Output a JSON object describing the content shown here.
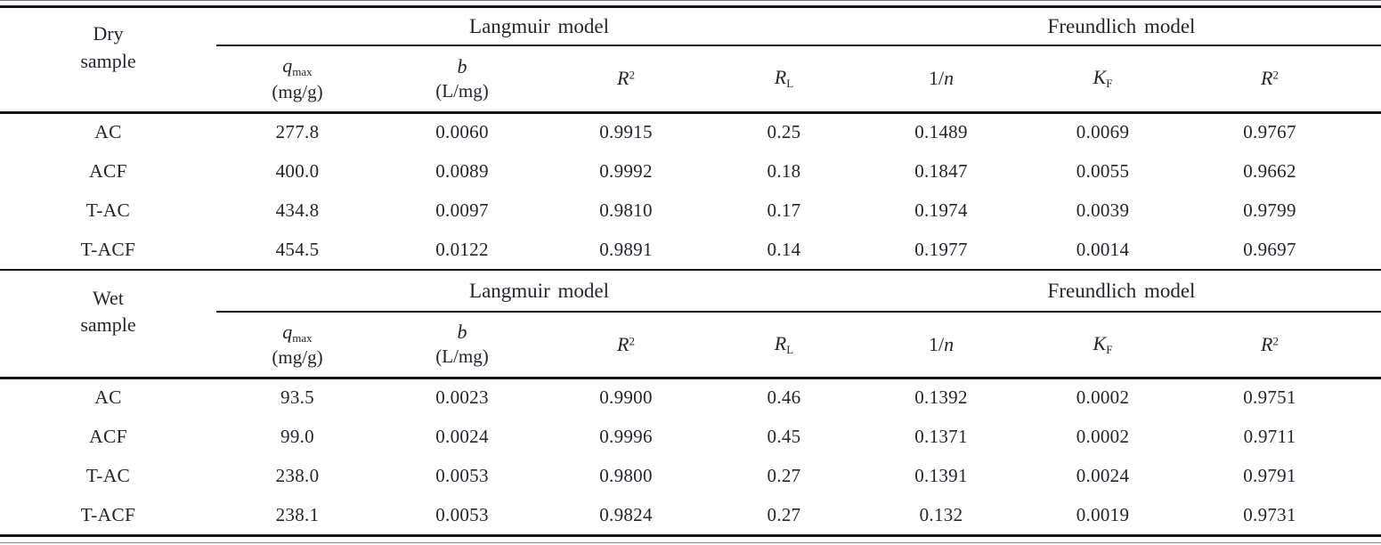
{
  "table": {
    "sections": [
      {
        "row_header": {
          "line1": "Dry",
          "line2": "sample"
        },
        "groups": [
          {
            "label": "Langmuir model"
          },
          {
            "label": "Freundlich model"
          }
        ],
        "columns": [
          {
            "sym": "q",
            "sub": "max",
            "unit": "(mg/g)"
          },
          {
            "sym": "b",
            "unit": "(L/mg)"
          },
          {
            "sym": "R",
            "sup": "2"
          },
          {
            "sym": "R",
            "sub": "L"
          },
          {
            "pre": "1/",
            "sym": "n"
          },
          {
            "sym": "K",
            "sub": "F"
          },
          {
            "sym": "R",
            "sup": "2"
          }
        ],
        "rows": [
          [
            "AC",
            "277.8",
            "0.0060",
            "0.9915",
            "0.25",
            "0.1489",
            "0.0069",
            "0.9767"
          ],
          [
            "ACF",
            "400.0",
            "0.0089",
            "0.9992",
            "0.18",
            "0.1847",
            "0.0055",
            "0.9662"
          ],
          [
            "T-AC",
            "434.8",
            "0.0097",
            "0.9810",
            "0.17",
            "0.1974",
            "0.0039",
            "0.9799"
          ],
          [
            "T-ACF",
            "454.5",
            "0.0122",
            "0.9891",
            "0.14",
            "0.1977",
            "0.0014",
            "0.9697"
          ]
        ]
      },
      {
        "row_header": {
          "line1": "Wet",
          "line2": "sample"
        },
        "groups": [
          {
            "label": "Langmuir model"
          },
          {
            "label": "Freundlich model"
          }
        ],
        "columns": [
          {
            "sym": "q",
            "sub": "max",
            "unit": "(mg/g)"
          },
          {
            "sym": "b",
            "unit": "(L/mg)"
          },
          {
            "sym": "R",
            "sup": "2"
          },
          {
            "sym": "R",
            "sub": "L"
          },
          {
            "pre": "1/",
            "sym": "n"
          },
          {
            "sym": "K",
            "sub": "F"
          },
          {
            "sym": "R",
            "sup": "2"
          }
        ],
        "rows": [
          [
            "AC",
            "93.5",
            "0.0023",
            "0.9900",
            "0.46",
            "0.1392",
            "0.0002",
            "0.9751"
          ],
          [
            "ACF",
            "99.0",
            "0.0024",
            "0.9996",
            "0.45",
            "0.1371",
            "0.0002",
            "0.9711"
          ],
          [
            "T-AC",
            "238.0",
            "0.0053",
            "0.9800",
            "0.27",
            "0.1391",
            "0.0024",
            "0.9791"
          ],
          [
            "T-ACF",
            "238.1",
            "0.0053",
            "0.9824",
            "0.27",
            "0.132",
            "0.0019",
            "0.9731"
          ]
        ]
      }
    ]
  },
  "colors": {
    "background": "#ffffff",
    "text": "#24242c",
    "rule_dark": "#15151b",
    "rule_faint": "#8a8a92"
  }
}
